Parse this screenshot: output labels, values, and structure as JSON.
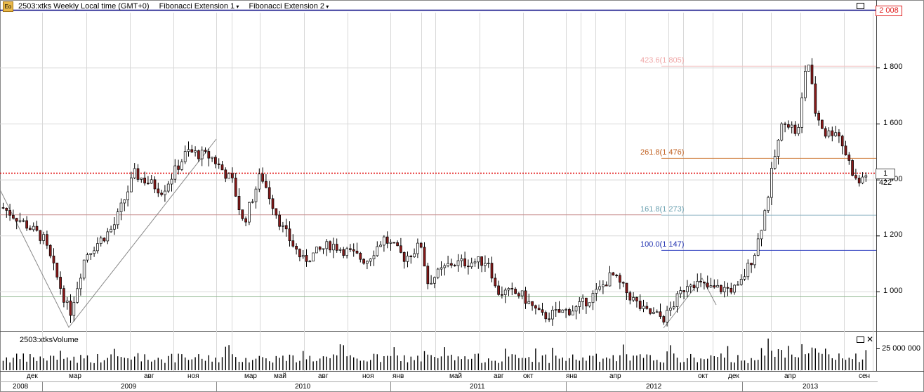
{
  "header": {
    "logo_text": "Ео",
    "symbol_label": "2503:xtks Weekly Local time (GMT+0)",
    "fib1_label": "Fibonacci Extension 1",
    "fib2_label": "Fibonacci Extension 2"
  },
  "price_axis": {
    "labels": [
      "1 800",
      "1 600",
      "1 400",
      "1 200",
      "1 000"
    ],
    "top_line_label": "2 008",
    "current_price_label": "1 422"
  },
  "fib_levels": {
    "l4236": "423.6(1 805)",
    "l2618": "261.8(1 476)",
    "l1618": "161.8(1 273)",
    "l1000": "100.0(1 147)"
  },
  "volume_panel": {
    "title": "2503:xtksVolume",
    "axis_label": "25 000 000"
  },
  "time_axis": {
    "months": [
      "дек",
      "мар",
      "авг",
      "ноя",
      "мар",
      "май",
      "авг",
      "ноя",
      "янв",
      "май",
      "авг",
      "окт",
      "янв",
      "апр",
      "окт",
      "дек",
      "апр",
      "сен"
    ],
    "years": [
      "2008",
      "2009",
      "2010",
      "2011",
      "2012",
      "2013"
    ]
  },
  "colors": {
    "up": "#ffffff",
    "down": "#8b1a1a",
    "grid": "#d8d8d8",
    "blue_line": "#000080",
    "red_dotted": "#e00000"
  }
}
